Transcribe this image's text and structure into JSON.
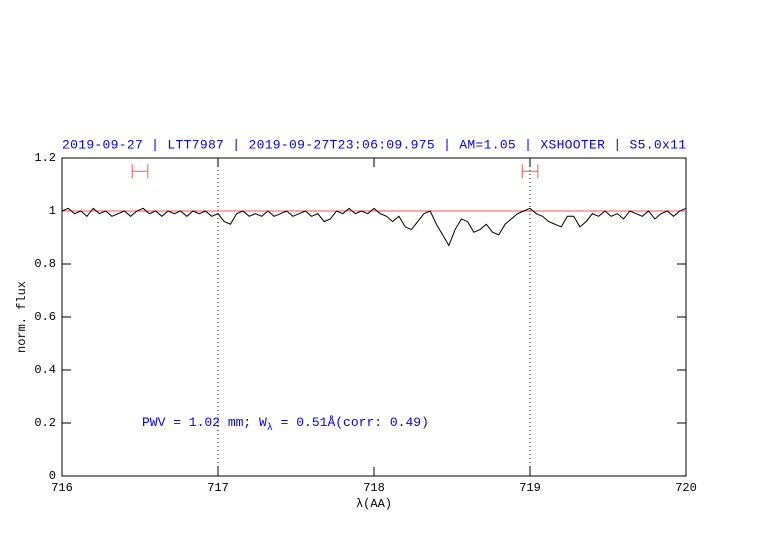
{
  "chart_data": {
    "type": "line",
    "title": "2019-09-27 | LTT7987 | 2019-09-27T23:06:09.975 | AM=1.05 | XSHOOTER | S5.0x11",
    "xlabel": "λ(AA)",
    "ylabel": "norm. flux",
    "annotation": [
      "PWV = 1.02 mm; W",
      "λ",
      " = 0.51Å(corr: 0.49)"
    ],
    "xlim": [
      716,
      720
    ],
    "ylim": [
      0,
      1.2
    ],
    "xticks": [
      716,
      717,
      718,
      719,
      720
    ],
    "yticks": [
      0,
      0.2,
      0.4,
      0.6,
      0.8,
      1,
      1.2
    ],
    "color": "#000000",
    "reference_line": {
      "value": 1,
      "color": "#ff5050"
    },
    "vlines": [
      717,
      719
    ],
    "markers": {
      "y": 1.15,
      "ranges": [
        [
          716.45,
          716.55
        ],
        [
          718.95,
          719.05
        ]
      ],
      "color": "#ff5050"
    },
    "x": [
      716.0,
      716.04,
      716.08,
      716.12,
      716.16,
      716.2,
      716.24,
      716.28,
      716.32,
      716.36,
      716.4,
      716.44,
      716.48,
      716.52,
      716.56,
      716.6,
      716.64,
      716.68,
      716.72,
      716.76,
      716.8,
      716.84,
      716.88,
      716.92,
      716.96,
      717.0,
      717.04,
      717.08,
      717.12,
      717.16,
      717.2,
      717.24,
      717.28,
      717.32,
      717.36,
      717.4,
      717.44,
      717.48,
      717.52,
      717.56,
      717.6,
      717.64,
      717.68,
      717.72,
      717.76,
      717.8,
      717.84,
      717.88,
      717.92,
      717.96,
      718.0,
      718.04,
      718.08,
      718.12,
      718.16,
      718.2,
      718.24,
      718.28,
      718.32,
      718.36,
      718.4,
      718.44,
      718.48,
      718.52,
      718.56,
      718.6,
      718.64,
      718.68,
      718.72,
      718.76,
      718.8,
      718.84,
      718.88,
      718.92,
      718.96,
      719.0,
      719.04,
      719.08,
      719.12,
      719.16,
      719.2,
      719.24,
      719.28,
      719.32,
      719.36,
      719.4,
      719.44,
      719.48,
      719.52,
      719.56,
      719.6,
      719.64,
      719.68,
      719.72,
      719.76,
      719.8,
      719.84,
      719.88,
      719.92,
      719.96,
      720.0
    ],
    "values": [
      1.0,
      1.01,
      0.99,
      1.0,
      0.98,
      1.01,
      0.99,
      1.0,
      0.98,
      0.99,
      1.0,
      0.98,
      1.0,
      1.01,
      0.99,
      1.0,
      0.98,
      1.0,
      0.99,
      1.0,
      0.98,
      1.0,
      0.99,
      1.0,
      0.98,
      0.99,
      0.96,
      0.95,
      0.99,
      1.0,
      0.98,
      0.99,
      0.98,
      1.0,
      0.98,
      0.99,
      1.0,
      0.98,
      0.99,
      1.0,
      0.98,
      0.99,
      0.96,
      0.97,
      1.0,
      0.99,
      1.01,
      0.99,
      1.0,
      0.99,
      1.01,
      0.99,
      0.98,
      0.96,
      0.98,
      0.94,
      0.93,
      0.96,
      0.99,
      1.0,
      0.95,
      0.91,
      0.87,
      0.93,
      0.97,
      0.96,
      0.92,
      0.93,
      0.95,
      0.92,
      0.91,
      0.95,
      0.97,
      0.99,
      1.0,
      1.01,
      0.99,
      0.98,
      0.96,
      0.95,
      0.94,
      0.98,
      0.98,
      0.94,
      0.96,
      0.99,
      0.98,
      1.0,
      0.98,
      0.99,
      0.97,
      1.0,
      0.99,
      0.98,
      1.0,
      0.97,
      0.99,
      1.0,
      0.98,
      1.0,
      1.01
    ]
  }
}
